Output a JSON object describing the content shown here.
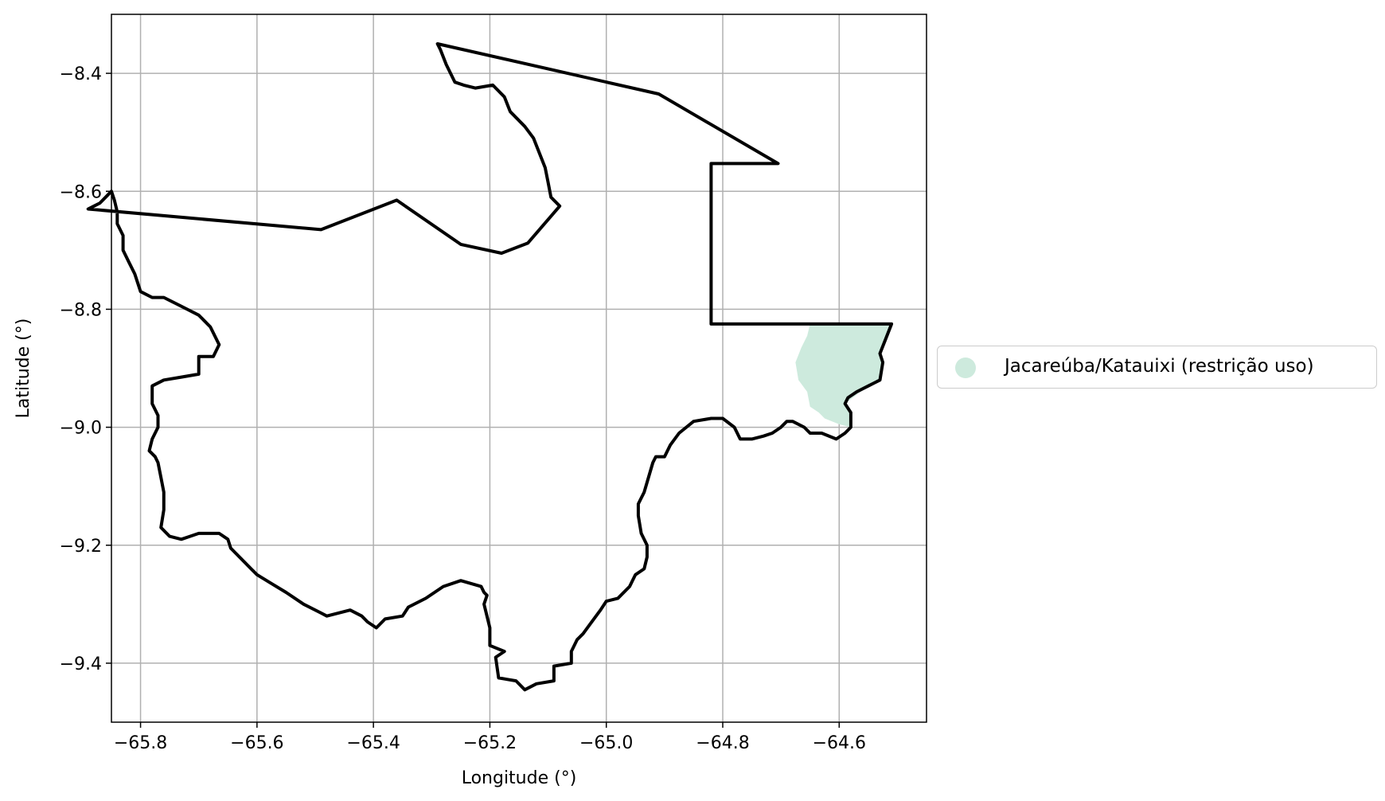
{
  "chart_data": {
    "type": "map",
    "title": "",
    "xlabel": "Longitude (°)",
    "ylabel": "Latitude (°)",
    "xlim": [
      -65.85,
      -64.45
    ],
    "ylim": [
      -9.5,
      -8.3
    ],
    "xticks": [
      -65.8,
      -65.6,
      -65.4,
      -65.2,
      -65.0,
      -64.8,
      -64.6
    ],
    "yticks": [
      -8.4,
      -8.6,
      -8.8,
      -9.0,
      -9.2,
      -9.4
    ],
    "xtick_labels": [
      "−65.8",
      "−65.6",
      "−65.4",
      "−65.2",
      "−65.0",
      "−64.8",
      "−64.6"
    ],
    "ytick_labels": [
      "−8.4",
      "−8.6",
      "−8.8",
      "−9.0",
      "−9.2",
      "−9.4"
    ],
    "grid": true,
    "legend_position": "right",
    "legend": [
      {
        "label": "Jacareúba/Katauixi (restrição uso)",
        "color": "#cdeadd"
      }
    ],
    "boundary": {
      "color": "#000000",
      "coordinates": [
        [
          -65.29,
          -8.35
        ],
        [
          -64.91,
          -8.435
        ],
        [
          -64.705,
          -8.553
        ],
        [
          -64.82,
          -8.553
        ],
        [
          -64.82,
          -8.825
        ],
        [
          -64.51,
          -8.825
        ],
        [
          -64.52,
          -8.85
        ],
        [
          -64.53,
          -8.875
        ],
        [
          -64.525,
          -8.89
        ],
        [
          -64.53,
          -8.92
        ],
        [
          -64.54,
          -8.925
        ],
        [
          -64.55,
          -8.93
        ],
        [
          -64.57,
          -8.94
        ],
        [
          -64.585,
          -8.95
        ],
        [
          -64.59,
          -8.96
        ],
        [
          -64.58,
          -8.975
        ],
        [
          -64.58,
          -9.0
        ],
        [
          -64.59,
          -9.01
        ],
        [
          -64.605,
          -9.02
        ],
        [
          -64.63,
          -9.01
        ],
        [
          -64.65,
          -9.01
        ],
        [
          -64.66,
          -9.0
        ],
        [
          -64.68,
          -8.99
        ],
        [
          -64.69,
          -8.99
        ],
        [
          -64.7,
          -9.0
        ],
        [
          -64.715,
          -9.01
        ],
        [
          -64.73,
          -9.015
        ],
        [
          -64.75,
          -9.02
        ],
        [
          -64.77,
          -9.02
        ],
        [
          -64.78,
          -9.0
        ],
        [
          -64.8,
          -8.985
        ],
        [
          -64.82,
          -8.985
        ],
        [
          -64.85,
          -8.99
        ],
        [
          -64.875,
          -9.01
        ],
        [
          -64.89,
          -9.03
        ],
        [
          -64.9,
          -9.05
        ],
        [
          -64.915,
          -9.05
        ],
        [
          -64.92,
          -9.06
        ],
        [
          -64.935,
          -9.11
        ],
        [
          -64.945,
          -9.13
        ],
        [
          -64.945,
          -9.15
        ],
        [
          -64.94,
          -9.18
        ],
        [
          -64.93,
          -9.2
        ],
        [
          -64.93,
          -9.22
        ],
        [
          -64.935,
          -9.24
        ],
        [
          -64.95,
          -9.25
        ],
        [
          -64.96,
          -9.27
        ],
        [
          -64.975,
          -9.285
        ],
        [
          -64.98,
          -9.29
        ],
        [
          -65.0,
          -9.295
        ],
        [
          -65.01,
          -9.31
        ],
        [
          -65.025,
          -9.33
        ],
        [
          -65.04,
          -9.35
        ],
        [
          -65.05,
          -9.36
        ],
        [
          -65.06,
          -9.38
        ],
        [
          -65.06,
          -9.4
        ],
        [
          -65.09,
          -9.405
        ],
        [
          -65.09,
          -9.43
        ],
        [
          -65.12,
          -9.435
        ],
        [
          -65.14,
          -9.445
        ],
        [
          -65.155,
          -9.43
        ],
        [
          -65.185,
          -9.425
        ],
        [
          -65.19,
          -9.39
        ],
        [
          -65.175,
          -9.38
        ],
        [
          -65.2,
          -9.37
        ],
        [
          -65.2,
          -9.34
        ],
        [
          -65.21,
          -9.3
        ],
        [
          -65.205,
          -9.285
        ],
        [
          -65.21,
          -9.28
        ],
        [
          -65.215,
          -9.27
        ],
        [
          -65.25,
          -9.26
        ],
        [
          -65.28,
          -9.27
        ],
        [
          -65.31,
          -9.29
        ],
        [
          -65.34,
          -9.305
        ],
        [
          -65.35,
          -9.32
        ],
        [
          -65.38,
          -9.325
        ],
        [
          -65.395,
          -9.34
        ],
        [
          -65.41,
          -9.33
        ],
        [
          -65.42,
          -9.32
        ],
        [
          -65.44,
          -9.31
        ],
        [
          -65.48,
          -9.32
        ],
        [
          -65.49,
          -9.315
        ],
        [
          -65.52,
          -9.3
        ],
        [
          -65.55,
          -9.28
        ],
        [
          -65.575,
          -9.265
        ],
        [
          -65.6,
          -9.25
        ],
        [
          -65.61,
          -9.24
        ],
        [
          -65.63,
          -9.22
        ],
        [
          -65.645,
          -9.205
        ],
        [
          -65.65,
          -9.19
        ],
        [
          -65.665,
          -9.18
        ],
        [
          -65.68,
          -9.18
        ],
        [
          -65.7,
          -9.18
        ],
        [
          -65.715,
          -9.185
        ],
        [
          -65.73,
          -9.19
        ],
        [
          -65.75,
          -9.185
        ],
        [
          -65.765,
          -9.17
        ],
        [
          -65.76,
          -9.14
        ],
        [
          -65.76,
          -9.11
        ],
        [
          -65.765,
          -9.085
        ],
        [
          -65.77,
          -9.06
        ],
        [
          -65.775,
          -9.05
        ],
        [
          -65.785,
          -9.04
        ],
        [
          -65.78,
          -9.02
        ],
        [
          -65.77,
          -9.0
        ],
        [
          -65.77,
          -8.98
        ],
        [
          -65.78,
          -8.96
        ],
        [
          -65.78,
          -8.93
        ],
        [
          -65.76,
          -8.92
        ],
        [
          -65.73,
          -8.915
        ],
        [
          -65.7,
          -8.91
        ],
        [
          -65.7,
          -8.88
        ],
        [
          -65.675,
          -8.88
        ],
        [
          -65.665,
          -8.86
        ],
        [
          -65.68,
          -8.83
        ],
        [
          -65.69,
          -8.82
        ],
        [
          -65.7,
          -8.81
        ],
        [
          -65.72,
          -8.8
        ],
        [
          -65.74,
          -8.79
        ],
        [
          -65.76,
          -8.78
        ],
        [
          -65.78,
          -8.78
        ],
        [
          -65.8,
          -8.77
        ],
        [
          -65.81,
          -8.74
        ],
        [
          -65.82,
          -8.72
        ],
        [
          -65.83,
          -8.7
        ],
        [
          -65.83,
          -8.675
        ],
        [
          -65.84,
          -8.655
        ],
        [
          -65.84,
          -8.635
        ],
        [
          -65.845,
          -8.615
        ],
        [
          -65.85,
          -8.6
        ],
        [
          -65.86,
          -8.61
        ],
        [
          -65.87,
          -8.62
        ],
        [
          -65.88,
          -8.625
        ],
        [
          -65.89,
          -8.63
        ],
        [
          -65.49,
          -8.665
        ],
        [
          -65.36,
          -8.615
        ],
        [
          -65.25,
          -8.69
        ],
        [
          -65.18,
          -8.705
        ],
        [
          -65.135,
          -8.688
        ],
        [
          -65.08,
          -8.625
        ],
        [
          -65.095,
          -8.61
        ],
        [
          -65.1,
          -8.585
        ],
        [
          -65.105,
          -8.56
        ],
        [
          -65.115,
          -8.535
        ],
        [
          -65.125,
          -8.51
        ],
        [
          -65.14,
          -8.49
        ],
        [
          -65.165,
          -8.465
        ],
        [
          -65.175,
          -8.44
        ],
        [
          -65.195,
          -8.42
        ],
        [
          -65.225,
          -8.425
        ],
        [
          -65.245,
          -8.42
        ],
        [
          -65.26,
          -8.415
        ],
        [
          -65.275,
          -8.385
        ],
        [
          -65.285,
          -8.36
        ],
        [
          -65.29,
          -8.35
        ]
      ]
    },
    "area_restriction": {
      "label": "Jacareúba/Katauixi (restrição uso)",
      "color": "#cdeadd",
      "coordinates": [
        [
          -64.65,
          -8.825
        ],
        [
          -64.51,
          -8.825
        ],
        [
          -64.52,
          -8.85
        ],
        [
          -64.53,
          -8.875
        ],
        [
          -64.525,
          -8.89
        ],
        [
          -64.53,
          -8.92
        ],
        [
          -64.55,
          -8.93
        ],
        [
          -64.59,
          -8.96
        ],
        [
          -64.58,
          -8.975
        ],
        [
          -64.58,
          -9.0
        ],
        [
          -64.6,
          -8.995
        ],
        [
          -64.625,
          -8.985
        ],
        [
          -64.635,
          -8.975
        ],
        [
          -64.65,
          -8.965
        ],
        [
          -64.655,
          -8.94
        ],
        [
          -64.67,
          -8.92
        ],
        [
          -64.675,
          -8.89
        ],
        [
          -64.665,
          -8.865
        ],
        [
          -64.655,
          -8.845
        ],
        [
          -64.65,
          -8.825
        ]
      ]
    }
  }
}
